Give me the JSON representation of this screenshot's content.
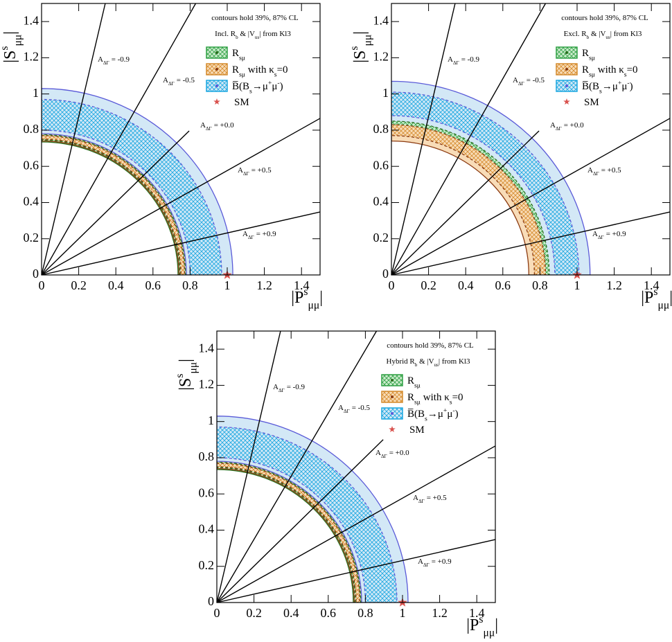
{
  "chart_data": [
    {
      "type": "contour",
      "note": "contours hold 39%, 87% CL",
      "subtitle": [
        [
          "Incl. R",
          "n"
        ],
        [
          "b",
          "sub"
        ],
        [
          " & |V",
          "n"
        ],
        [
          "us",
          "sub"
        ],
        [
          "| from Kl3",
          "n"
        ]
      ],
      "xlabel": [
        [
          "|P",
          "n"
        ],
        [
          "s",
          "sup"
        ],
        [
          "μμ",
          "sub"
        ],
        [
          "|",
          "n"
        ]
      ],
      "ylabel": [
        [
          "|S",
          "n"
        ],
        [
          "s",
          "sup"
        ],
        [
          "μμ",
          "sub"
        ],
        [
          "|",
          "n"
        ]
      ],
      "xlim": [
        0,
        1.5
      ],
      "ylim": [
        0,
        1.5
      ],
      "xticks": [
        0,
        0.2,
        0.4,
        0.6,
        0.8,
        1,
        1.2,
        1.4
      ],
      "yticks": [
        0,
        0.2,
        0.4,
        0.6,
        0.8,
        1,
        1.2,
        1.4
      ],
      "series": [
        {
          "name": [
            [
              "R",
              "n"
            ],
            [
              "sμ",
              "sub"
            ]
          ],
          "color": "#2ea043",
          "edge": "#2a6e1e",
          "light": "#cdeccd",
          "cl87": [
            0.735,
            0.79
          ],
          "cl39": [
            0.745,
            0.775
          ]
        },
        {
          "name": [
            [
              "R",
              "n"
            ],
            [
              "sμ",
              "sub"
            ],
            [
              " with  κ",
              "n"
            ],
            [
              "s",
              "sub"
            ],
            [
              "=0",
              "n"
            ]
          ],
          "color": "#d48a2c",
          "edge": "#8b3a10",
          "light": "#f8dcb8",
          "cl87": [
            0.74,
            0.785
          ],
          "cl39": [
            0.75,
            0.77
          ]
        },
        {
          "name": [
            [
              "B̅(B",
              "n"
            ],
            [
              "s",
              "sub"
            ],
            [
              "→μ",
              "n"
            ],
            [
              "+",
              "sup"
            ],
            [
              "μ",
              "n"
            ],
            [
              "-",
              "sup"
            ],
            [
              ")",
              "n"
            ]
          ],
          "color": "#1aa7e0",
          "edge": "#5a5ad8",
          "light": "#d3e8f6",
          "cl87": [
            0.78,
            1.03
          ],
          "cl39": [
            0.8,
            0.97
          ]
        }
      ],
      "line_prefix": [
        [
          "A",
          "n"
        ],
        [
          "ΔΓ",
          "sub"
        ]
      ],
      "lines": [
        {
          "label": "= -0.9",
          "end": [
            0.343,
            1.5
          ]
        },
        {
          "label": "= -0.5",
          "end": [
            0.83,
            1.5
          ]
        },
        {
          "label": "= +0.0",
          "end": [
            0.795,
            0.796
          ]
        },
        {
          "label": "= +0.5",
          "end": [
            1.5,
            0.865
          ]
        },
        {
          "label": "= +0.9",
          "end": [
            1.5,
            0.348
          ]
        }
      ],
      "marker": {
        "name": "SM",
        "x": 1,
        "y": 0,
        "color": "#d9534f"
      }
    },
    {
      "type": "contour",
      "note": "contours hold 39%, 87% CL",
      "subtitle": [
        [
          "Excl. R",
          "n"
        ],
        [
          "b",
          "sub"
        ],
        [
          " & |V",
          "n"
        ],
        [
          "us",
          "sub"
        ],
        [
          "| from Kl3",
          "n"
        ]
      ],
      "xlabel": [
        [
          "|P",
          "n"
        ],
        [
          "s",
          "sup"
        ],
        [
          "μμ",
          "sub"
        ],
        [
          "|",
          "n"
        ]
      ],
      "ylabel": [
        [
          "|S",
          "n"
        ],
        [
          "s",
          "sup"
        ],
        [
          "μμ",
          "sub"
        ],
        [
          "|",
          "n"
        ]
      ],
      "xlim": [
        0,
        1.5
      ],
      "ylim": [
        0,
        1.5
      ],
      "xticks": [
        0,
        0.2,
        0.4,
        0.6,
        0.8,
        1,
        1.2,
        1.4
      ],
      "yticks": [
        0,
        0.2,
        0.4,
        0.6,
        0.8,
        1,
        1.2,
        1.4
      ],
      "series": [
        {
          "name": [
            [
              "R",
              "n"
            ],
            [
              "sμ",
              "sub"
            ]
          ],
          "color": "#2ea043",
          "edge": "#2a6e1e",
          "light": "#cdeccd",
          "cl87": [
            0.78,
            0.86
          ],
          "cl39": [
            0.79,
            0.85
          ]
        },
        {
          "name": [
            [
              "R",
              "n"
            ],
            [
              "sμ",
              "sub"
            ],
            [
              " with  κ",
              "n"
            ],
            [
              "s",
              "sub"
            ],
            [
              "=0",
              "n"
            ]
          ],
          "color": "#d48a2c",
          "edge": "#8b3a10",
          "light": "#f8dcb8",
          "cl87": [
            0.74,
            0.86
          ],
          "cl39": [
            0.77,
            0.83
          ]
        },
        {
          "name": [
            [
              "B̅(B",
              "n"
            ],
            [
              "s",
              "sub"
            ],
            [
              "→μ",
              "n"
            ],
            [
              "+",
              "sup"
            ],
            [
              "μ",
              "n"
            ],
            [
              "-",
              "sup"
            ],
            [
              ")",
              "n"
            ]
          ],
          "color": "#1aa7e0",
          "edge": "#5a5ad8",
          "light": "#d3e8f6",
          "cl87": [
            0.84,
            1.07
          ],
          "cl39": [
            0.88,
            1.01
          ]
        }
      ],
      "line_prefix": [
        [
          "A",
          "n"
        ],
        [
          "ΔΓ",
          "sub"
        ]
      ],
      "lines": [
        {
          "label": "= -0.9",
          "end": [
            0.343,
            1.5
          ]
        },
        {
          "label": "= -0.5",
          "end": [
            0.83,
            1.5
          ]
        },
        {
          "label": "= +0.0",
          "end": [
            0.795,
            0.796
          ]
        },
        {
          "label": "= +0.5",
          "end": [
            1.5,
            0.865
          ]
        },
        {
          "label": "= +0.9",
          "end": [
            1.5,
            0.348
          ]
        }
      ],
      "marker": {
        "name": "SM",
        "x": 1,
        "y": 0,
        "color": "#d9534f"
      }
    },
    {
      "type": "contour",
      "note": "contours hold 39%, 87% CL",
      "subtitle": [
        [
          "Hybrid R",
          "n"
        ],
        [
          "b",
          "sub"
        ],
        [
          " & |V",
          "n"
        ],
        [
          "us",
          "sub"
        ],
        [
          "| from Kl3",
          "n"
        ]
      ],
      "xlabel": [
        [
          "|P",
          "n"
        ],
        [
          "s",
          "sup"
        ],
        [
          "μμ",
          "sub"
        ],
        [
          "|",
          "n"
        ]
      ],
      "ylabel": [
        [
          "|S",
          "n"
        ],
        [
          "s",
          "sup"
        ],
        [
          "μμ",
          "sub"
        ],
        [
          "|",
          "n"
        ]
      ],
      "xlim": [
        0,
        1.5
      ],
      "ylim": [
        0,
        1.5
      ],
      "xticks": [
        0,
        0.2,
        0.4,
        0.6,
        0.8,
        1,
        1.2,
        1.4
      ],
      "yticks": [
        0,
        0.2,
        0.4,
        0.6,
        0.8,
        1,
        1.2,
        1.4
      ],
      "series": [
        {
          "name": [
            [
              "R",
              "n"
            ],
            [
              "sμ",
              "sub"
            ]
          ],
          "color": "#2ea043",
          "edge": "#2a6e1e",
          "light": "#cdeccd",
          "cl87": [
            0.735,
            0.79
          ],
          "cl39": [
            0.745,
            0.775
          ]
        },
        {
          "name": [
            [
              "R",
              "n"
            ],
            [
              "sμ",
              "sub"
            ],
            [
              " with  κ",
              "n"
            ],
            [
              "s",
              "sub"
            ],
            [
              "=0",
              "n"
            ]
          ],
          "color": "#d48a2c",
          "edge": "#8b3a10",
          "light": "#f8dcb8",
          "cl87": [
            0.74,
            0.785
          ],
          "cl39": [
            0.75,
            0.77
          ]
        },
        {
          "name": [
            [
              "B̅(B",
              "n"
            ],
            [
              "s",
              "sub"
            ],
            [
              "→μ",
              "n"
            ],
            [
              "+",
              "sup"
            ],
            [
              "μ",
              "n"
            ],
            [
              "-",
              "sup"
            ],
            [
              ")",
              "n"
            ]
          ],
          "color": "#1aa7e0",
          "edge": "#5a5ad8",
          "light": "#d3e8f6",
          "cl87": [
            0.78,
            1.03
          ],
          "cl39": [
            0.8,
            0.97
          ]
        }
      ],
      "line_prefix": [
        [
          "A",
          "n"
        ],
        [
          "ΔΓ",
          "sub"
        ]
      ],
      "lines": [
        {
          "label": "= -0.9",
          "end": [
            0.343,
            1.5
          ]
        },
        {
          "label": "= -0.5",
          "end": [
            0.86,
            1.5
          ]
        },
        {
          "label": "= +0.0",
          "end": [
            0.896,
            0.9
          ]
        },
        {
          "label": "= +0.5",
          "end": [
            1.5,
            0.865
          ]
        },
        {
          "label": "= +0.9",
          "end": [
            1.5,
            0.348
          ]
        }
      ],
      "marker": {
        "name": "SM",
        "x": 1,
        "y": 0,
        "color": "#d9534f"
      }
    }
  ]
}
